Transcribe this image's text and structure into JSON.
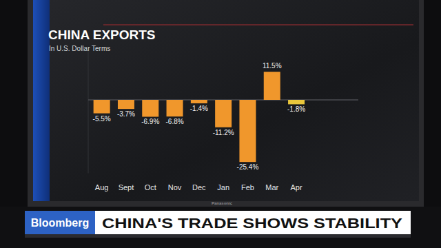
{
  "chart_data": {
    "type": "bar",
    "title": "CHINA EXPORTS",
    "subtitle": "In U.S. Dollar Terms",
    "categories": [
      "Aug",
      "Sept",
      "Oct",
      "Nov",
      "Dec",
      "Jan",
      "Feb",
      "Mar",
      "Apr"
    ],
    "values": [
      -5.5,
      -3.7,
      -6.9,
      -6.8,
      -1.4,
      -11.2,
      -25.4,
      11.5,
      -1.8
    ],
    "value_labels": [
      "-5.5%",
      "-3.7%",
      "-6.9%",
      "-6.8%",
      "-1.4%",
      "-11.2%",
      "-25.4%",
      "11.5%",
      "-1.8%"
    ],
    "colors": [
      "#f0972c",
      "#f0972c",
      "#f0972c",
      "#f0972c",
      "#f0972c",
      "#f0972c",
      "#f0972c",
      "#f0972c",
      "#e9c63c"
    ],
    "ylim": [
      -30,
      20
    ],
    "yticks": [
      0
    ],
    "grid": false,
    "data_labels": true,
    "tick_labels": "x"
  },
  "banner": {
    "brand": "Bloomberg",
    "headline": "CHINA'S TRADE SHOWS STABILITY"
  },
  "device": {
    "brand": "Panasonic"
  }
}
